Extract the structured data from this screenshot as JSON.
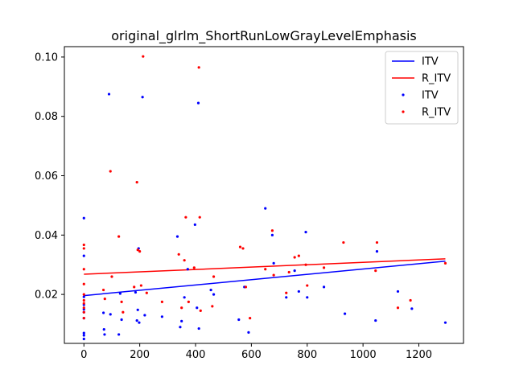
{
  "chart_data": {
    "type": "scatter",
    "title": "original_glrlm_ShortRunLowGrayLevelEmphasis",
    "xlabel": "",
    "ylabel": "",
    "xlim": [
      -70,
      1360
    ],
    "ylim": [
      0.0035,
      0.1035
    ],
    "xticks": [
      0,
      200,
      400,
      600,
      800,
      1000,
      1200
    ],
    "yticks": [
      0.02,
      0.04,
      0.06,
      0.08,
      0.1
    ],
    "ytick_labels": [
      "0.02",
      "0.04",
      "0.06",
      "0.08",
      "0.10"
    ],
    "grid": false,
    "legend_position": "top-right",
    "legend": [
      "ITV",
      "R_ITV",
      "ITV",
      "R_ITV"
    ],
    "colors": {
      "ITV": "#0000ff",
      "R_ITV": "#ff0000"
    },
    "fit_lines": [
      {
        "name": "ITV",
        "x": [
          0,
          1295
        ],
        "y": [
          0.0196,
          0.0312
        ]
      },
      {
        "name": "R_ITV",
        "x": [
          0,
          1295
        ],
        "y": [
          0.0268,
          0.032
        ]
      }
    ],
    "series": [
      {
        "name": "ITV",
        "points": [
          [
            0,
            0.0457
          ],
          [
            0,
            0.033
          ],
          [
            0,
            0.0192
          ],
          [
            0,
            0.0165
          ],
          [
            0,
            0.015
          ],
          [
            0,
            0.014
          ],
          [
            0,
            0.012
          ],
          [
            0,
            0.007
          ],
          [
            0,
            0.0062
          ],
          [
            0,
            0.005
          ],
          [
            70,
            0.0138
          ],
          [
            72,
            0.0082
          ],
          [
            74,
            0.0065
          ],
          [
            90,
            0.0875
          ],
          [
            95,
            0.0133
          ],
          [
            125,
            0.0065
          ],
          [
            130,
            0.0203
          ],
          [
            135,
            0.0115
          ],
          [
            185,
            0.0207
          ],
          [
            190,
            0.0112
          ],
          [
            193,
            0.0148
          ],
          [
            196,
            0.0355
          ],
          [
            198,
            0.0105
          ],
          [
            210,
            0.0865
          ],
          [
            218,
            0.013
          ],
          [
            280,
            0.0125
          ],
          [
            335,
            0.0395
          ],
          [
            345,
            0.009
          ],
          [
            350,
            0.011
          ],
          [
            360,
            0.019
          ],
          [
            372,
            0.0285
          ],
          [
            398,
            0.0435
          ],
          [
            405,
            0.0155
          ],
          [
            410,
            0.0845
          ],
          [
            412,
            0.0085
          ],
          [
            455,
            0.0215
          ],
          [
            465,
            0.02
          ],
          [
            555,
            0.0115
          ],
          [
            575,
            0.0225
          ],
          [
            590,
            0.0072
          ],
          [
            650,
            0.049
          ],
          [
            675,
            0.04
          ],
          [
            680,
            0.0305
          ],
          [
            725,
            0.019
          ],
          [
            755,
            0.028
          ],
          [
            770,
            0.021
          ],
          [
            795,
            0.041
          ],
          [
            800,
            0.019
          ],
          [
            860,
            0.0225
          ],
          [
            935,
            0.0135
          ],
          [
            1045,
            0.0112
          ],
          [
            1050,
            0.0345
          ],
          [
            1125,
            0.021
          ],
          [
            1175,
            0.0152
          ],
          [
            1295,
            0.0105
          ]
        ]
      },
      {
        "name": "R_ITV",
        "points": [
          [
            0,
            0.0367
          ],
          [
            0,
            0.0355
          ],
          [
            0,
            0.0285
          ],
          [
            0,
            0.0235
          ],
          [
            0,
            0.02
          ],
          [
            0,
            0.018
          ],
          [
            0,
            0.017
          ],
          [
            0,
            0.0155
          ],
          [
            0,
            0.014
          ],
          [
            0,
            0.012
          ],
          [
            70,
            0.0215
          ],
          [
            75,
            0.0185
          ],
          [
            95,
            0.0615
          ],
          [
            100,
            0.026
          ],
          [
            125,
            0.0395
          ],
          [
            135,
            0.0175
          ],
          [
            140,
            0.014
          ],
          [
            180,
            0.0225
          ],
          [
            190,
            0.0578
          ],
          [
            193,
            0.035
          ],
          [
            200,
            0.0345
          ],
          [
            205,
            0.023
          ],
          [
            212,
            0.1002
          ],
          [
            225,
            0.0205
          ],
          [
            280,
            0.0175
          ],
          [
            340,
            0.0335
          ],
          [
            350,
            0.0155
          ],
          [
            360,
            0.0315
          ],
          [
            365,
            0.046
          ],
          [
            375,
            0.0175
          ],
          [
            395,
            0.029
          ],
          [
            412,
            0.0965
          ],
          [
            415,
            0.046
          ],
          [
            418,
            0.0145
          ],
          [
            460,
            0.016
          ],
          [
            465,
            0.026
          ],
          [
            560,
            0.036
          ],
          [
            570,
            0.0355
          ],
          [
            580,
            0.0225
          ],
          [
            595,
            0.012
          ],
          [
            650,
            0.0285
          ],
          [
            675,
            0.0415
          ],
          [
            680,
            0.0265
          ],
          [
            725,
            0.0205
          ],
          [
            735,
            0.0275
          ],
          [
            755,
            0.0325
          ],
          [
            770,
            0.033
          ],
          [
            795,
            0.03
          ],
          [
            800,
            0.023
          ],
          [
            860,
            0.029
          ],
          [
            930,
            0.0375
          ],
          [
            1045,
            0.028
          ],
          [
            1050,
            0.0375
          ],
          [
            1125,
            0.0155
          ],
          [
            1170,
            0.018
          ],
          [
            1295,
            0.0305
          ]
        ]
      }
    ]
  }
}
